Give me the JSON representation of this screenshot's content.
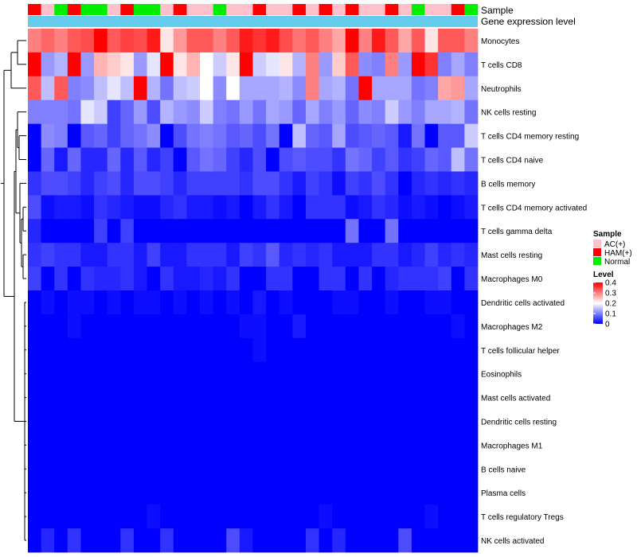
{
  "chart_data": {
    "type": "heatmap",
    "title": "",
    "annotation_labels": {
      "sample_track": "Sample",
      "expression_track": "Gene expression level"
    },
    "rows": [
      "Monocytes",
      "T cells CD8",
      "Neutrophils",
      "NK cells resting",
      "T cells CD4 memory resting",
      "T cells CD4 naive",
      "B cells memory",
      "T cells CD4 memory activated",
      "T cells gamma delta",
      "Mast cells resting",
      "Macrophages M0",
      "Dendritic cells activated",
      "Macrophages M2",
      "T cells follicular helper",
      "Eosinophils",
      "Mast cells activated",
      "Dendritic cells resting",
      "Macrophages M1",
      "B cells naive",
      "Plasma cells",
      "T cells regulatory  Tregs",
      "NK cells activated"
    ],
    "samples": [
      "HAM(+)",
      "AC(+)",
      "Normal",
      "HAM(+)",
      "Normal",
      "Normal",
      "AC(+)",
      "HAM(+)",
      "Normal",
      "Normal",
      "AC(+)",
      "HAM(+)",
      "AC(+)",
      "AC(+)",
      "Normal",
      "AC(+)",
      "AC(+)",
      "HAM(+)",
      "AC(+)",
      "AC(+)",
      "HAM(+)",
      "AC(+)",
      "HAM(+)",
      "AC(+)",
      "HAM(+)",
      "AC(+)",
      "AC(+)",
      "HAM(+)",
      "AC(+)",
      "Normal",
      "AC(+)",
      "AC(+)",
      "HAM(+)",
      "Normal"
    ],
    "values": [
      [
        0.3,
        0.32,
        0.3,
        0.33,
        0.34,
        0.4,
        0.33,
        0.35,
        0.34,
        0.38,
        0.22,
        0.28,
        0.33,
        0.33,
        0.3,
        0.33,
        0.38,
        0.36,
        0.38,
        0.34,
        0.31,
        0.33,
        0.3,
        0.27,
        0.4,
        0.3,
        0.38,
        0.33,
        0.27,
        0.33,
        0.22,
        0.33,
        0.33,
        0.3
      ],
      [
        0.4,
        0.12,
        0.14,
        0.4,
        0.12,
        0.26,
        0.24,
        0.22,
        0.12,
        0.18,
        0.4,
        0.22,
        0.26,
        0.2,
        0.16,
        0.22,
        0.4,
        0.16,
        0.18,
        0.22,
        0.14,
        0.3,
        0.12,
        0.24,
        0.33,
        0.11,
        0.1,
        0.3,
        0.12,
        0.4,
        0.36,
        0.1,
        0.13,
        0.1
      ],
      [
        0.33,
        0.15,
        0.33,
        0.1,
        0.11,
        0.15,
        0.18,
        0.15,
        0.4,
        0.14,
        0.09,
        0.15,
        0.16,
        0.2,
        0.11,
        0.2,
        0.13,
        0.13,
        0.13,
        0.14,
        0.11,
        0.3,
        0.13,
        0.14,
        0.09,
        0.4,
        0.13,
        0.13,
        0.13,
        0.09,
        0.1,
        0.27,
        0.28,
        0.13
      ],
      [
        0.1,
        0.1,
        0.1,
        0.09,
        0.18,
        0.16,
        0.05,
        0.08,
        0.12,
        0.06,
        0.14,
        0.12,
        0.11,
        0.16,
        0.1,
        0.09,
        0.12,
        0.09,
        0.13,
        0.12,
        0.08,
        0.13,
        0.1,
        0.12,
        0.08,
        0.11,
        0.1,
        0.16,
        0.12,
        0.1,
        0.13,
        0.13,
        0.14,
        0.09
      ],
      [
        0.0,
        0.11,
        0.1,
        0.0,
        0.07,
        0.08,
        0.05,
        0.08,
        0.09,
        0.11,
        0.0,
        0.06,
        0.09,
        0.1,
        0.09,
        0.07,
        0.08,
        0.06,
        0.09,
        0.0,
        0.15,
        0.08,
        0.07,
        0.13,
        0.06,
        0.07,
        0.08,
        0.07,
        0.02,
        0.09,
        0.0,
        0.07,
        0.07,
        0.16
      ],
      [
        0.0,
        0.08,
        0.02,
        0.08,
        0.03,
        0.03,
        0.08,
        0.03,
        0.07,
        0.03,
        0.05,
        0.0,
        0.07,
        0.09,
        0.08,
        0.05,
        0.03,
        0.06,
        0.0,
        0.06,
        0.07,
        0.06,
        0.06,
        0.04,
        0.09,
        0.08,
        0.05,
        0.07,
        0.04,
        0.05,
        0.08,
        0.07,
        0.15,
        0.09
      ],
      [
        0.04,
        0.06,
        0.06,
        0.05,
        0.03,
        0.05,
        0.06,
        0.03,
        0.06,
        0.06,
        0.05,
        0.03,
        0.05,
        0.05,
        0.05,
        0.05,
        0.04,
        0.06,
        0.06,
        0.04,
        0.02,
        0.05,
        0.04,
        0.01,
        0.05,
        0.04,
        0.06,
        0.04,
        0.0,
        0.03,
        0.04,
        0.03,
        0.04,
        0.03
      ],
      [
        0.06,
        0.01,
        0.02,
        0.02,
        0.01,
        0.04,
        0.03,
        0.02,
        0.01,
        0.01,
        0.03,
        0.04,
        0.02,
        0.02,
        0.01,
        0.02,
        0.0,
        0.02,
        0.04,
        0.02,
        0.0,
        0.04,
        0.04,
        0.04,
        0.01,
        0.02,
        0.04,
        0.03,
        0.01,
        0.02,
        0.01,
        0.0,
        0.01,
        0.02
      ],
      [
        0.03,
        0.0,
        0.0,
        0.0,
        0.0,
        0.05,
        0.0,
        0.05,
        0.0,
        0.0,
        0.0,
        0.0,
        0.0,
        0.0,
        0.0,
        0.0,
        0.0,
        0.0,
        0.0,
        0.0,
        0.0,
        0.0,
        0.0,
        0.0,
        0.09,
        0.0,
        0.0,
        0.09,
        0.0,
        0.0,
        0.0,
        0.0,
        0.0,
        0.0
      ],
      [
        0.04,
        0.05,
        0.04,
        0.04,
        0.02,
        0.02,
        0.04,
        0.04,
        0.02,
        0.05,
        0.02,
        0.02,
        0.04,
        0.04,
        0.04,
        0.02,
        0.05,
        0.04,
        0.07,
        0.03,
        0.04,
        0.03,
        0.04,
        0.02,
        0.02,
        0.02,
        0.04,
        0.04,
        0.02,
        0.03,
        0.05,
        0.03,
        0.04,
        0.03
      ],
      [
        0.05,
        0.0,
        0.04,
        0.0,
        0.04,
        0.03,
        0.03,
        0.04,
        0.02,
        0.0,
        0.04,
        0.02,
        0.02,
        0.03,
        0.02,
        0.04,
        0.0,
        0.0,
        0.04,
        0.04,
        0.0,
        0.0,
        0.04,
        0.04,
        0.0,
        0.04,
        0.0,
        0.03,
        0.04,
        0.04,
        0.04,
        0.05,
        0.0,
        0.04
      ],
      [
        0.0,
        0.01,
        0.0,
        0.01,
        0.01,
        0.0,
        0.01,
        0.0,
        0.01,
        0.01,
        0.0,
        0.01,
        0.0,
        0.01,
        0.0,
        0.01,
        0.0,
        0.02,
        0.0,
        0.01,
        0.0,
        0.0,
        0.0,
        0.01,
        0.01,
        0.0,
        0.0,
        0.01,
        0.0,
        0.0,
        0.01,
        0.01,
        0.0,
        0.0
      ],
      [
        0.0,
        0.0,
        0.0,
        0.01,
        0.0,
        0.0,
        0.0,
        0.0,
        0.0,
        0.0,
        0.0,
        0.0,
        0.0,
        0.0,
        0.0,
        0.0,
        0.01,
        0.01,
        0.0,
        0.0,
        0.02,
        0.0,
        0.0,
        0.0,
        0.0,
        0.0,
        0.0,
        0.0,
        0.0,
        0.0,
        0.0,
        0.0,
        0.01,
        0.0
      ],
      [
        0.0,
        0.0,
        0.0,
        0.0,
        0.0,
        0.0,
        0.0,
        0.0,
        0.0,
        0.0,
        0.0,
        0.0,
        0.0,
        0.0,
        0.0,
        0.0,
        0.0,
        0.01,
        0.0,
        0.0,
        0.0,
        0.0,
        0.0,
        0.0,
        0.0,
        0.0,
        0.0,
        0.0,
        0.0,
        0.0,
        0.0,
        0.0,
        0.0,
        0.0
      ],
      [
        0.0,
        0.0,
        0.0,
        0.0,
        0.0,
        0.0,
        0.0,
        0.0,
        0.0,
        0.0,
        0.0,
        0.0,
        0.0,
        0.0,
        0.0,
        0.0,
        0.0,
        0.0,
        0.0,
        0.0,
        0.0,
        0.0,
        0.0,
        0.0,
        0.0,
        0.0,
        0.0,
        0.0,
        0.0,
        0.0,
        0.0,
        0.0,
        0.0,
        0.0
      ],
      [
        0.0,
        0.0,
        0.0,
        0.0,
        0.0,
        0.0,
        0.0,
        0.0,
        0.0,
        0.0,
        0.0,
        0.0,
        0.0,
        0.0,
        0.0,
        0.0,
        0.0,
        0.0,
        0.0,
        0.0,
        0.0,
        0.0,
        0.0,
        0.0,
        0.0,
        0.0,
        0.0,
        0.0,
        0.0,
        0.0,
        0.0,
        0.0,
        0.0,
        0.0
      ],
      [
        0.0,
        0.0,
        0.0,
        0.0,
        0.0,
        0.0,
        0.0,
        0.0,
        0.0,
        0.0,
        0.0,
        0.0,
        0.0,
        0.0,
        0.0,
        0.0,
        0.0,
        0.0,
        0.0,
        0.0,
        0.0,
        0.0,
        0.0,
        0.0,
        0.0,
        0.0,
        0.0,
        0.0,
        0.0,
        0.0,
        0.0,
        0.0,
        0.0,
        0.0
      ],
      [
        0.0,
        0.0,
        0.0,
        0.0,
        0.0,
        0.0,
        0.0,
        0.0,
        0.0,
        0.0,
        0.0,
        0.0,
        0.0,
        0.0,
        0.0,
        0.0,
        0.0,
        0.0,
        0.0,
        0.0,
        0.0,
        0.0,
        0.0,
        0.0,
        0.0,
        0.0,
        0.0,
        0.0,
        0.0,
        0.0,
        0.0,
        0.0,
        0.0,
        0.0
      ],
      [
        0.0,
        0.0,
        0.0,
        0.0,
        0.0,
        0.0,
        0.0,
        0.0,
        0.0,
        0.0,
        0.0,
        0.0,
        0.0,
        0.0,
        0.0,
        0.0,
        0.0,
        0.0,
        0.0,
        0.0,
        0.0,
        0.0,
        0.0,
        0.0,
        0.0,
        0.0,
        0.0,
        0.0,
        0.0,
        0.0,
        0.0,
        0.0,
        0.0,
        0.0
      ],
      [
        0.0,
        0.0,
        0.0,
        0.0,
        0.0,
        0.0,
        0.0,
        0.0,
        0.0,
        0.0,
        0.0,
        0.0,
        0.0,
        0.0,
        0.0,
        0.0,
        0.0,
        0.0,
        0.0,
        0.0,
        0.0,
        0.0,
        0.0,
        0.0,
        0.0,
        0.0,
        0.0,
        0.0,
        0.0,
        0.0,
        0.0,
        0.0,
        0.0,
        0.0
      ],
      [
        0.0,
        0.0,
        0.0,
        0.0,
        0.0,
        0.0,
        0.0,
        0.0,
        0.0,
        0.01,
        0.0,
        0.0,
        0.0,
        0.0,
        0.0,
        0.0,
        0.0,
        0.0,
        0.0,
        0.0,
        0.0,
        0.0,
        0.01,
        0.0,
        0.0,
        0.0,
        0.0,
        0.0,
        0.0,
        0.0,
        0.01,
        0.0,
        0.0,
        0.0
      ],
      [
        0.0,
        0.03,
        0.0,
        0.04,
        0.0,
        0.0,
        0.0,
        0.04,
        0.0,
        0.0,
        0.04,
        0.0,
        0.0,
        0.0,
        0.0,
        0.06,
        0.02,
        0.0,
        0.0,
        0.0,
        0.0,
        0.04,
        0.0,
        0.03,
        0.0,
        0.0,
        0.0,
        0.0,
        0.06,
        0.0,
        0.0,
        0.0,
        0.0,
        0.0
      ]
    ],
    "value_range": [
      0,
      0.4
    ],
    "legend": {
      "sample_title": "Sample",
      "sample_entries": [
        {
          "label": "AC(+)",
          "color": "#ffc0cb"
        },
        {
          "label": "HAM(+)",
          "color": "#ff0000"
        },
        {
          "label": "Normal",
          "color": "#00ee00"
        }
      ],
      "level_title": "Level",
      "level_ticks": [
        {
          "label": "0.4",
          "value": 0.4
        },
        {
          "label": "0.3",
          "value": 0.3
        },
        {
          "label": "0.2",
          "value": 0.2
        },
        {
          "label": "0.1",
          "value": 0.1
        },
        {
          "label": "0",
          "value": 0.0
        }
      ],
      "position": "right"
    },
    "colors": {
      "low": "#0000ff",
      "mid": "#ffffff",
      "high": "#ff0000",
      "expression_track": "#66ccee"
    }
  }
}
